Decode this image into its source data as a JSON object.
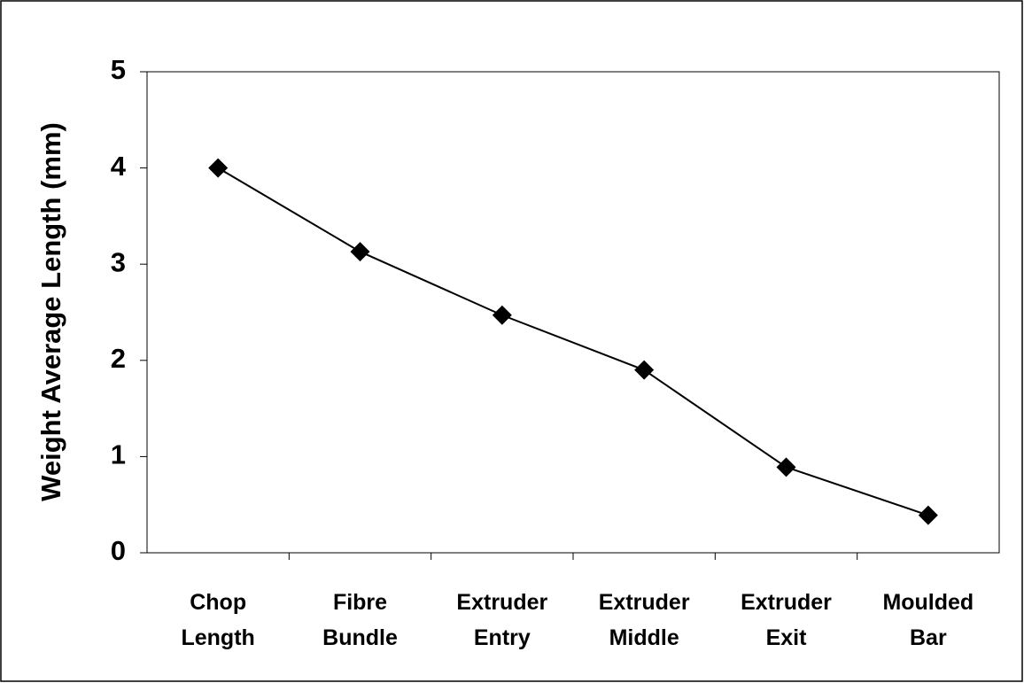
{
  "chart_data": {
    "type": "line",
    "y_label": "Weight Average Length (mm)",
    "categories": [
      "Chop Length",
      "Fibre Bundle",
      "Extruder Entry",
      "Extruder Middle",
      "Extruder Exit",
      "Moulded Bar"
    ],
    "series": [
      {
        "name": null,
        "color": "#000000",
        "values": [
          4.0,
          3.13,
          2.47,
          1.9,
          0.89,
          0.39
        ]
      }
    ],
    "ylim": [
      0,
      5
    ],
    "yticks": [
      0,
      1,
      2,
      3,
      4,
      5
    ],
    "grid": false
  }
}
